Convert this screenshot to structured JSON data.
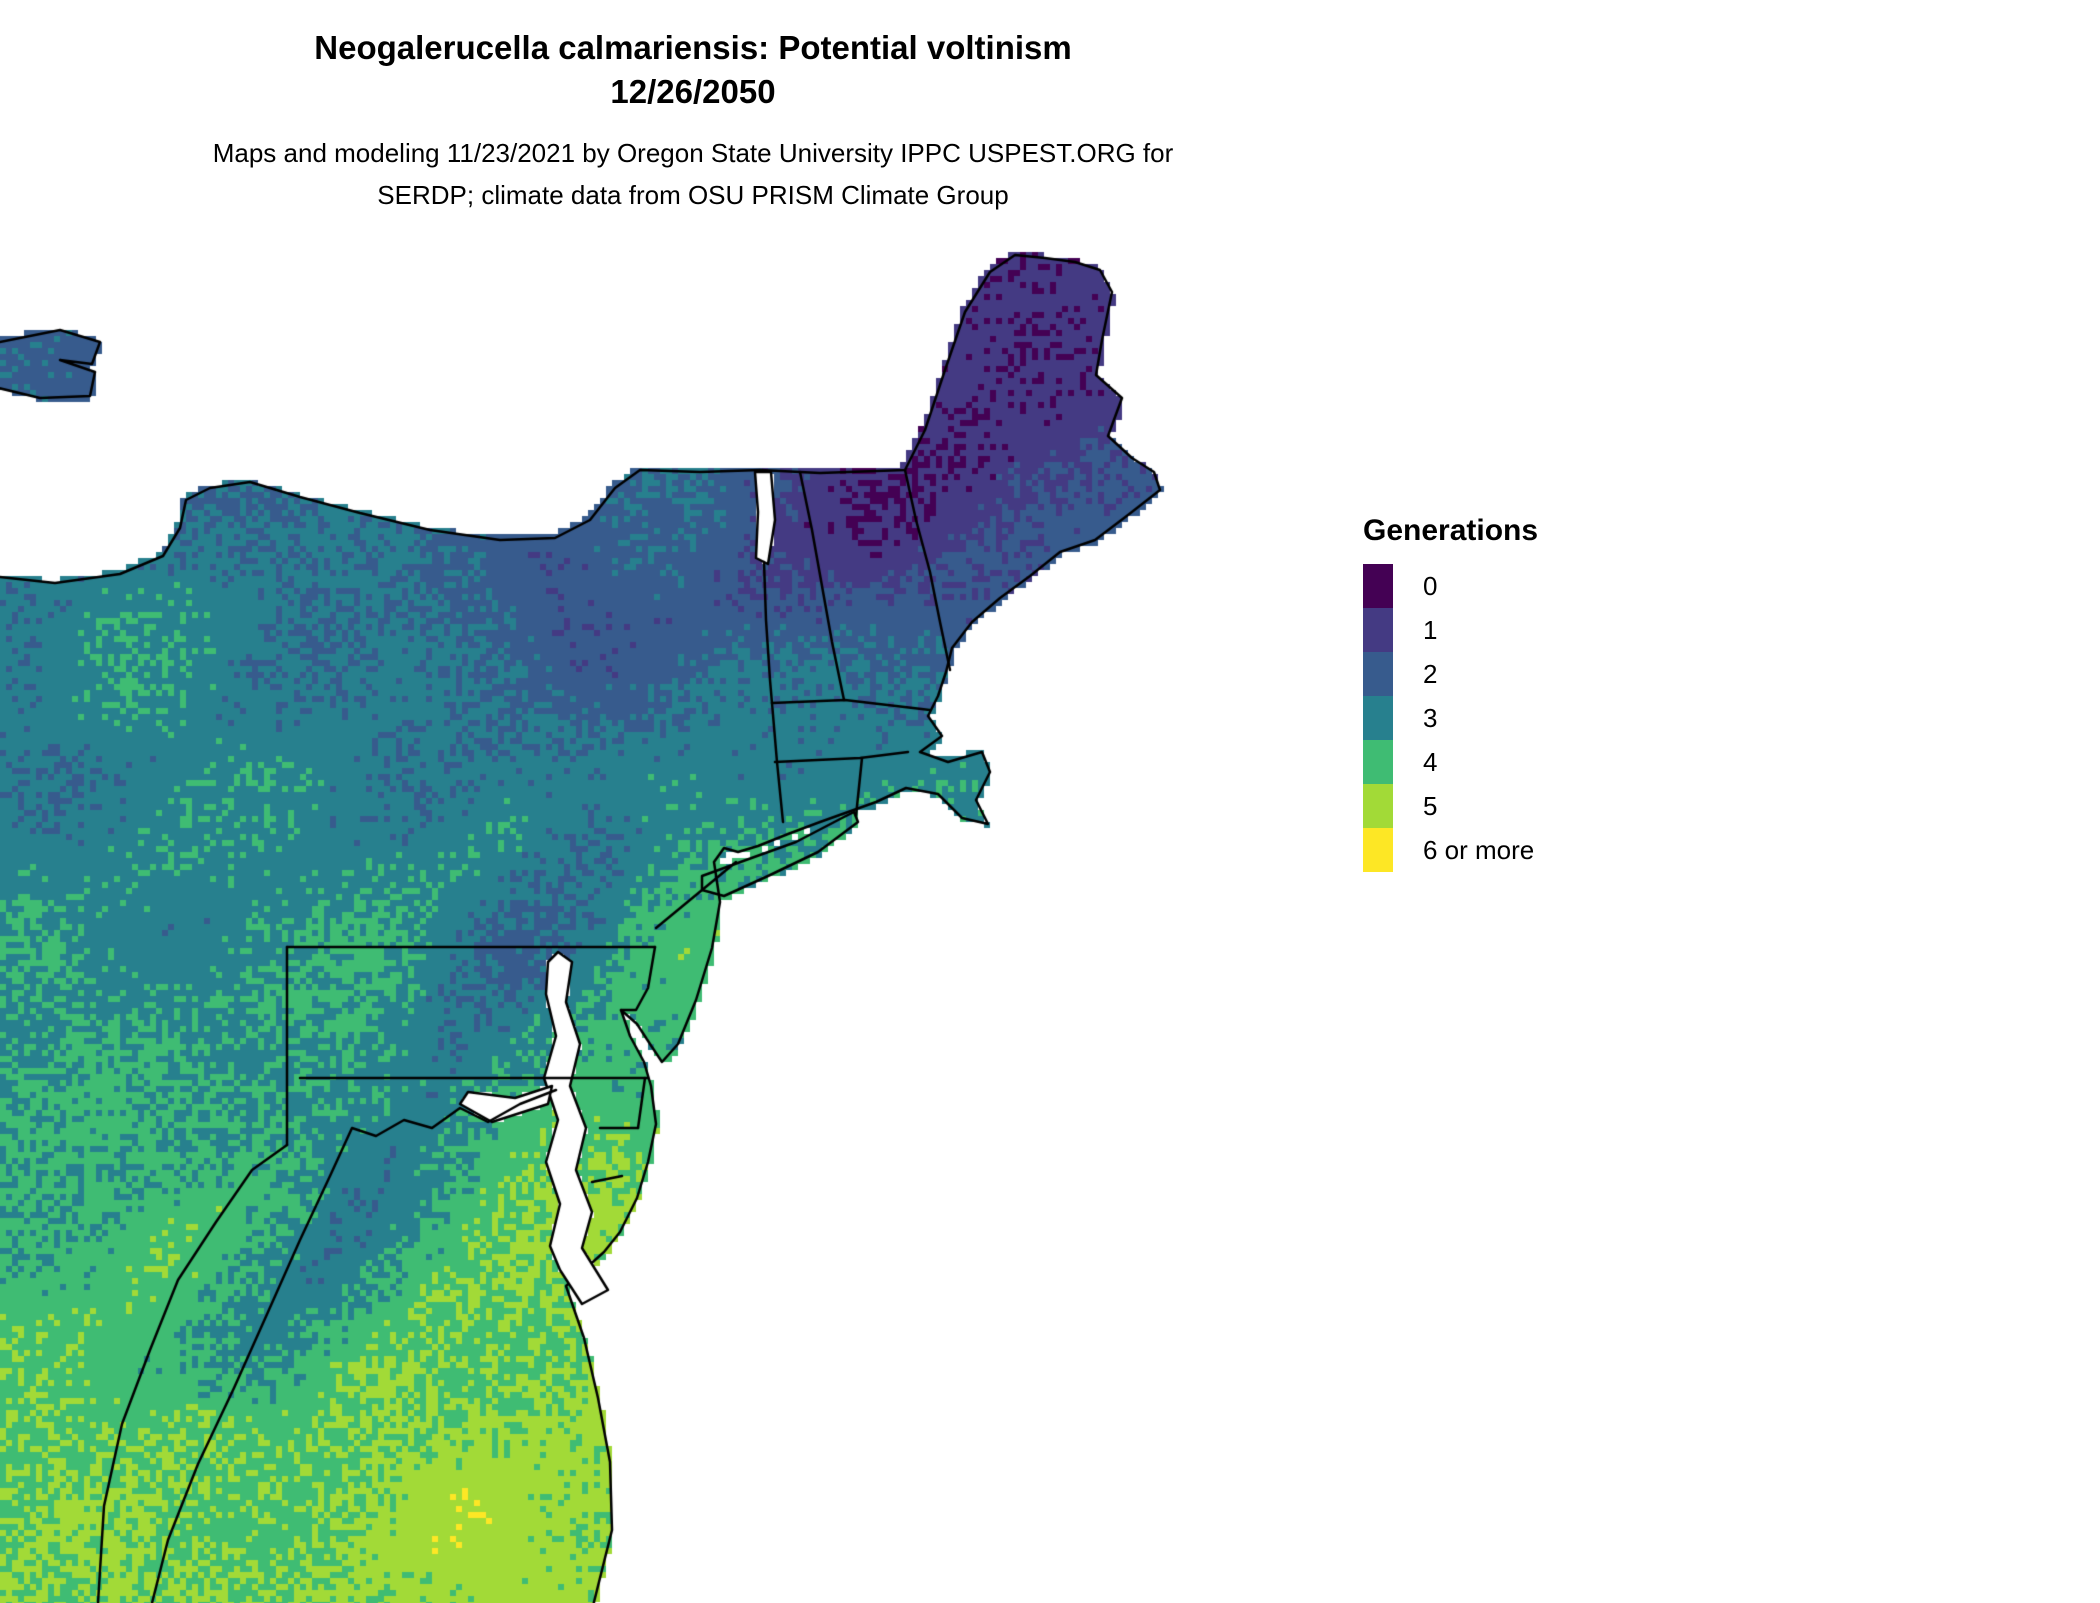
{
  "header": {
    "title": "Neogalerucella calmariensis: Potential voltinism",
    "date": "12/26/2050",
    "credit_line1": "Maps and modeling 11/23/2021 by Oregon State University IPPC USPEST.ORG for",
    "credit_line2": "SERDP; climate data from OSU PRISM Climate Group"
  },
  "legend": {
    "title": "Generations",
    "items": [
      {
        "label": "0",
        "color": "#440154"
      },
      {
        "label": "1",
        "color": "#443a83"
      },
      {
        "label": "2",
        "color": "#375b8d"
      },
      {
        "label": "3",
        "color": "#27808e"
      },
      {
        "label": "4",
        "color": "#3fbc73"
      },
      {
        "label": "5",
        "color": "#a2da37"
      },
      {
        "label": "6 or more",
        "color": "#fde725"
      }
    ]
  },
  "map": {
    "background_color": "#ffffff",
    "water_color": "#ffffff",
    "state_border_color": "#000000"
  }
}
